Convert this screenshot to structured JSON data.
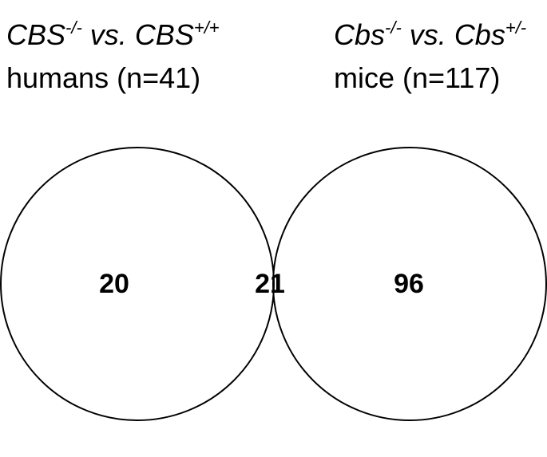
{
  "sets": [
    {
      "label": [
        "CBS",
        "-/-",
        " vs. ",
        "CBS",
        "+/+"
      ],
      "subtitle": "humans (n=41)"
    },
    {
      "label": [
        "Cbs",
        "-/-",
        " vs. ",
        "Cbs",
        "+/-"
      ],
      "subtitle": "mice (n=117)"
    }
  ],
  "regions": [
    {
      "count": 20
    },
    {
      "count": 21
    },
    {
      "count": 96
    }
  ]
}
